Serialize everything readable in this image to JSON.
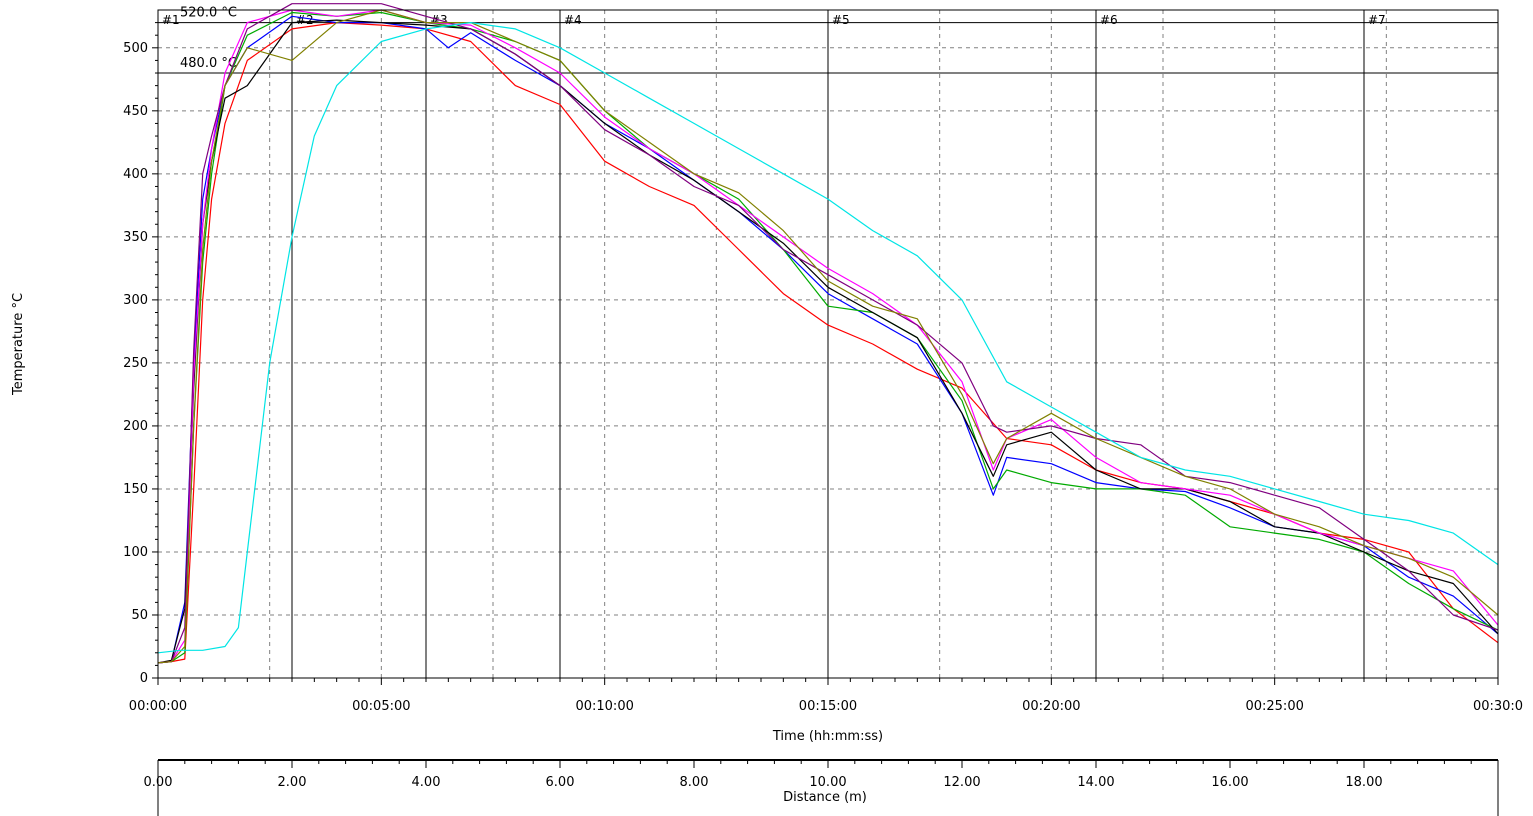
{
  "chart_data": {
    "type": "line",
    "xlabel": "Time (hh:mm:ss)",
    "ylabel": "Temperature °C",
    "x2label": "Distance (m)",
    "xlim_min": [
      0,
      30
    ],
    "ylim": [
      0,
      530
    ],
    "x2lim": [
      0,
      20
    ],
    "grid": true,
    "x_ticks": [
      "00:00:00",
      "00:05:00",
      "00:10:00",
      "00:15:00",
      "00:20:00",
      "00:25:00",
      "00:30:0"
    ],
    "x_tick_values_min": [
      0,
      5,
      10,
      15,
      20,
      25,
      30
    ],
    "y_ticks": [
      "0",
      "50",
      "100",
      "150",
      "200",
      "250",
      "300",
      "350",
      "400",
      "450",
      "500"
    ],
    "y_tick_values": [
      0,
      50,
      100,
      150,
      200,
      250,
      300,
      350,
      400,
      450,
      500
    ],
    "x2_ticks": [
      "0.00",
      "2.00",
      "4.00",
      "6.00",
      "8.00",
      "10.00",
      "12.00",
      "14.00",
      "16.00",
      "18.00"
    ],
    "x2_tick_values": [
      0,
      2,
      4,
      6,
      8,
      10,
      12,
      14,
      16,
      18
    ],
    "limits": [
      {
        "label": "520.0 °C",
        "value": 520
      },
      {
        "label": "480.0 °C",
        "value": 480
      }
    ],
    "markers": [
      {
        "label": "#1",
        "x_min": 0
      },
      {
        "label": "#2",
        "x_min": 3
      },
      {
        "label": "#3",
        "x_min": 6
      },
      {
        "label": "#4",
        "x_min": 9
      },
      {
        "label": "#5",
        "x_min": 15
      },
      {
        "label": "#6",
        "x_min": 21
      },
      {
        "label": "#7",
        "x_min": 27
      }
    ],
    "series": [
      {
        "color": "#ff0000",
        "x": [
          0,
          0.3,
          0.6,
          0.8,
          1.0,
          1.2,
          1.5,
          2,
          3,
          4,
          5,
          6,
          7,
          8,
          9,
          10,
          11,
          12,
          13,
          14,
          15,
          16,
          17,
          18,
          19,
          20,
          21,
          22,
          23,
          24,
          25,
          26,
          27,
          28,
          29,
          30
        ],
        "y": [
          12,
          13,
          15,
          150,
          300,
          380,
          440,
          490,
          515,
          520,
          518,
          515,
          505,
          470,
          455,
          410,
          390,
          375,
          340,
          305,
          280,
          265,
          245,
          230,
          190,
          185,
          165,
          155,
          150,
          140,
          130,
          115,
          110,
          100,
          55,
          28
        ]
      },
      {
        "color": "#0000ff",
        "x": [
          0,
          0.3,
          0.6,
          0.8,
          1.0,
          1.2,
          1.5,
          2,
          3,
          4,
          5,
          6,
          6.5,
          7,
          8,
          9,
          10,
          11,
          12,
          13,
          14,
          15,
          16,
          17,
          18,
          18.7,
          19,
          20,
          21,
          22,
          23,
          24,
          25,
          26,
          27,
          28,
          29,
          30
        ],
        "y": [
          12,
          13,
          60,
          250,
          380,
          420,
          470,
          500,
          525,
          520,
          520,
          515,
          500,
          512,
          490,
          470,
          440,
          420,
          395,
          370,
          340,
          305,
          285,
          265,
          210,
          145,
          175,
          170,
          155,
          150,
          148,
          135,
          120,
          115,
          105,
          80,
          65,
          35
        ]
      },
      {
        "color": "#00aa00",
        "x": [
          0,
          0.3,
          0.6,
          0.8,
          1.0,
          1.2,
          1.5,
          2,
          3,
          4,
          5,
          6,
          7,
          8,
          9,
          10,
          11,
          12,
          13,
          14,
          15,
          16,
          17,
          18,
          18.7,
          19,
          20,
          21,
          22,
          23,
          24,
          25,
          26,
          27,
          28,
          29,
          30
        ],
        "y": [
          12,
          13,
          20,
          200,
          330,
          400,
          470,
          510,
          528,
          525,
          528,
          520,
          515,
          505,
          490,
          450,
          420,
          400,
          380,
          340,
          295,
          290,
          270,
          220,
          150,
          165,
          155,
          150,
          150,
          145,
          120,
          115,
          110,
          100,
          75,
          55,
          38
        ]
      },
      {
        "color": "#000000",
        "x": [
          0,
          0.3,
          0.6,
          0.8,
          1.0,
          1.2,
          1.5,
          2,
          3,
          4,
          5,
          6,
          7,
          8,
          9,
          10,
          11,
          12,
          13,
          14,
          15,
          16,
          17,
          18,
          18.7,
          19,
          20,
          21,
          22,
          23,
          24,
          25,
          26,
          27,
          28,
          29,
          30
        ],
        "y": [
          12,
          14,
          55,
          230,
          360,
          410,
          460,
          470,
          520,
          522,
          520,
          518,
          515,
          495,
          470,
          440,
          415,
          395,
          370,
          345,
          310,
          290,
          270,
          210,
          160,
          185,
          195,
          165,
          150,
          150,
          140,
          120,
          115,
          100,
          85,
          75,
          35
        ]
      },
      {
        "color": "#ff00ff",
        "x": [
          0,
          0.3,
          0.6,
          0.8,
          1.0,
          1.2,
          1.5,
          2,
          3,
          4,
          5,
          6,
          7,
          8,
          9,
          10,
          11,
          12,
          13,
          14,
          15,
          16,
          17,
          18,
          18.7,
          19,
          20,
          21,
          22,
          23,
          24,
          25,
          26,
          27,
          28,
          29,
          30
        ],
        "y": [
          12,
          13,
          30,
          240,
          360,
          420,
          480,
          520,
          530,
          525,
          530,
          520,
          518,
          500,
          480,
          445,
          420,
          400,
          375,
          350,
          325,
          305,
          280,
          235,
          165,
          190,
          205,
          175,
          155,
          150,
          145,
          130,
          115,
          105,
          95,
          85,
          42
        ]
      },
      {
        "color": "#800080",
        "x": [
          0,
          0.3,
          0.6,
          0.8,
          1.0,
          1.2,
          1.5,
          2,
          3,
          4,
          5,
          6,
          7,
          8,
          9,
          10,
          11,
          12,
          13,
          14,
          15,
          16,
          17,
          18,
          18.7,
          19,
          20,
          21,
          22,
          23,
          24,
          25,
          26,
          27,
          28,
          29,
          30
        ],
        "y": [
          12,
          13,
          40,
          260,
          400,
          430,
          470,
          515,
          535,
          535,
          535,
          525,
          515,
          495,
          470,
          435,
          415,
          390,
          375,
          340,
          320,
          300,
          280,
          250,
          200,
          195,
          200,
          190,
          185,
          160,
          155,
          145,
          135,
          110,
          85,
          50,
          38
        ]
      },
      {
        "color": "#808000",
        "x": [
          0,
          0.3,
          0.6,
          0.8,
          1.0,
          1.2,
          1.5,
          2,
          3,
          4,
          5,
          6,
          7,
          8,
          9,
          10,
          11,
          12,
          13,
          14,
          15,
          16,
          17,
          18,
          18.7,
          19,
          20,
          21,
          22,
          23,
          24,
          25,
          26,
          27,
          28,
          29,
          30
        ],
        "y": [
          12,
          13,
          25,
          200,
          340,
          410,
          470,
          500,
          490,
          520,
          530,
          520,
          520,
          505,
          490,
          450,
          425,
          400,
          385,
          355,
          315,
          295,
          285,
          225,
          170,
          190,
          210,
          190,
          175,
          160,
          150,
          130,
          120,
          105,
          95,
          80,
          50
        ]
      },
      {
        "color": "#00e5e5",
        "x": [
          0,
          0.5,
          1.0,
          1.5,
          1.8,
          2.0,
          2.5,
          3,
          3.5,
          4,
          5,
          6,
          7,
          8,
          9,
          10,
          11,
          12,
          13,
          14,
          15,
          16,
          17,
          18,
          19,
          20,
          21,
          22,
          23,
          24,
          25,
          26,
          27,
          28,
          29,
          30
        ],
        "y": [
          20,
          22,
          22,
          25,
          40,
          100,
          250,
          350,
          430,
          470,
          505,
          515,
          520,
          515,
          500,
          480,
          460,
          440,
          420,
          400,
          380,
          355,
          335,
          300,
          235,
          215,
          195,
          175,
          165,
          160,
          150,
          140,
          130,
          125,
          115,
          90
        ]
      }
    ]
  }
}
